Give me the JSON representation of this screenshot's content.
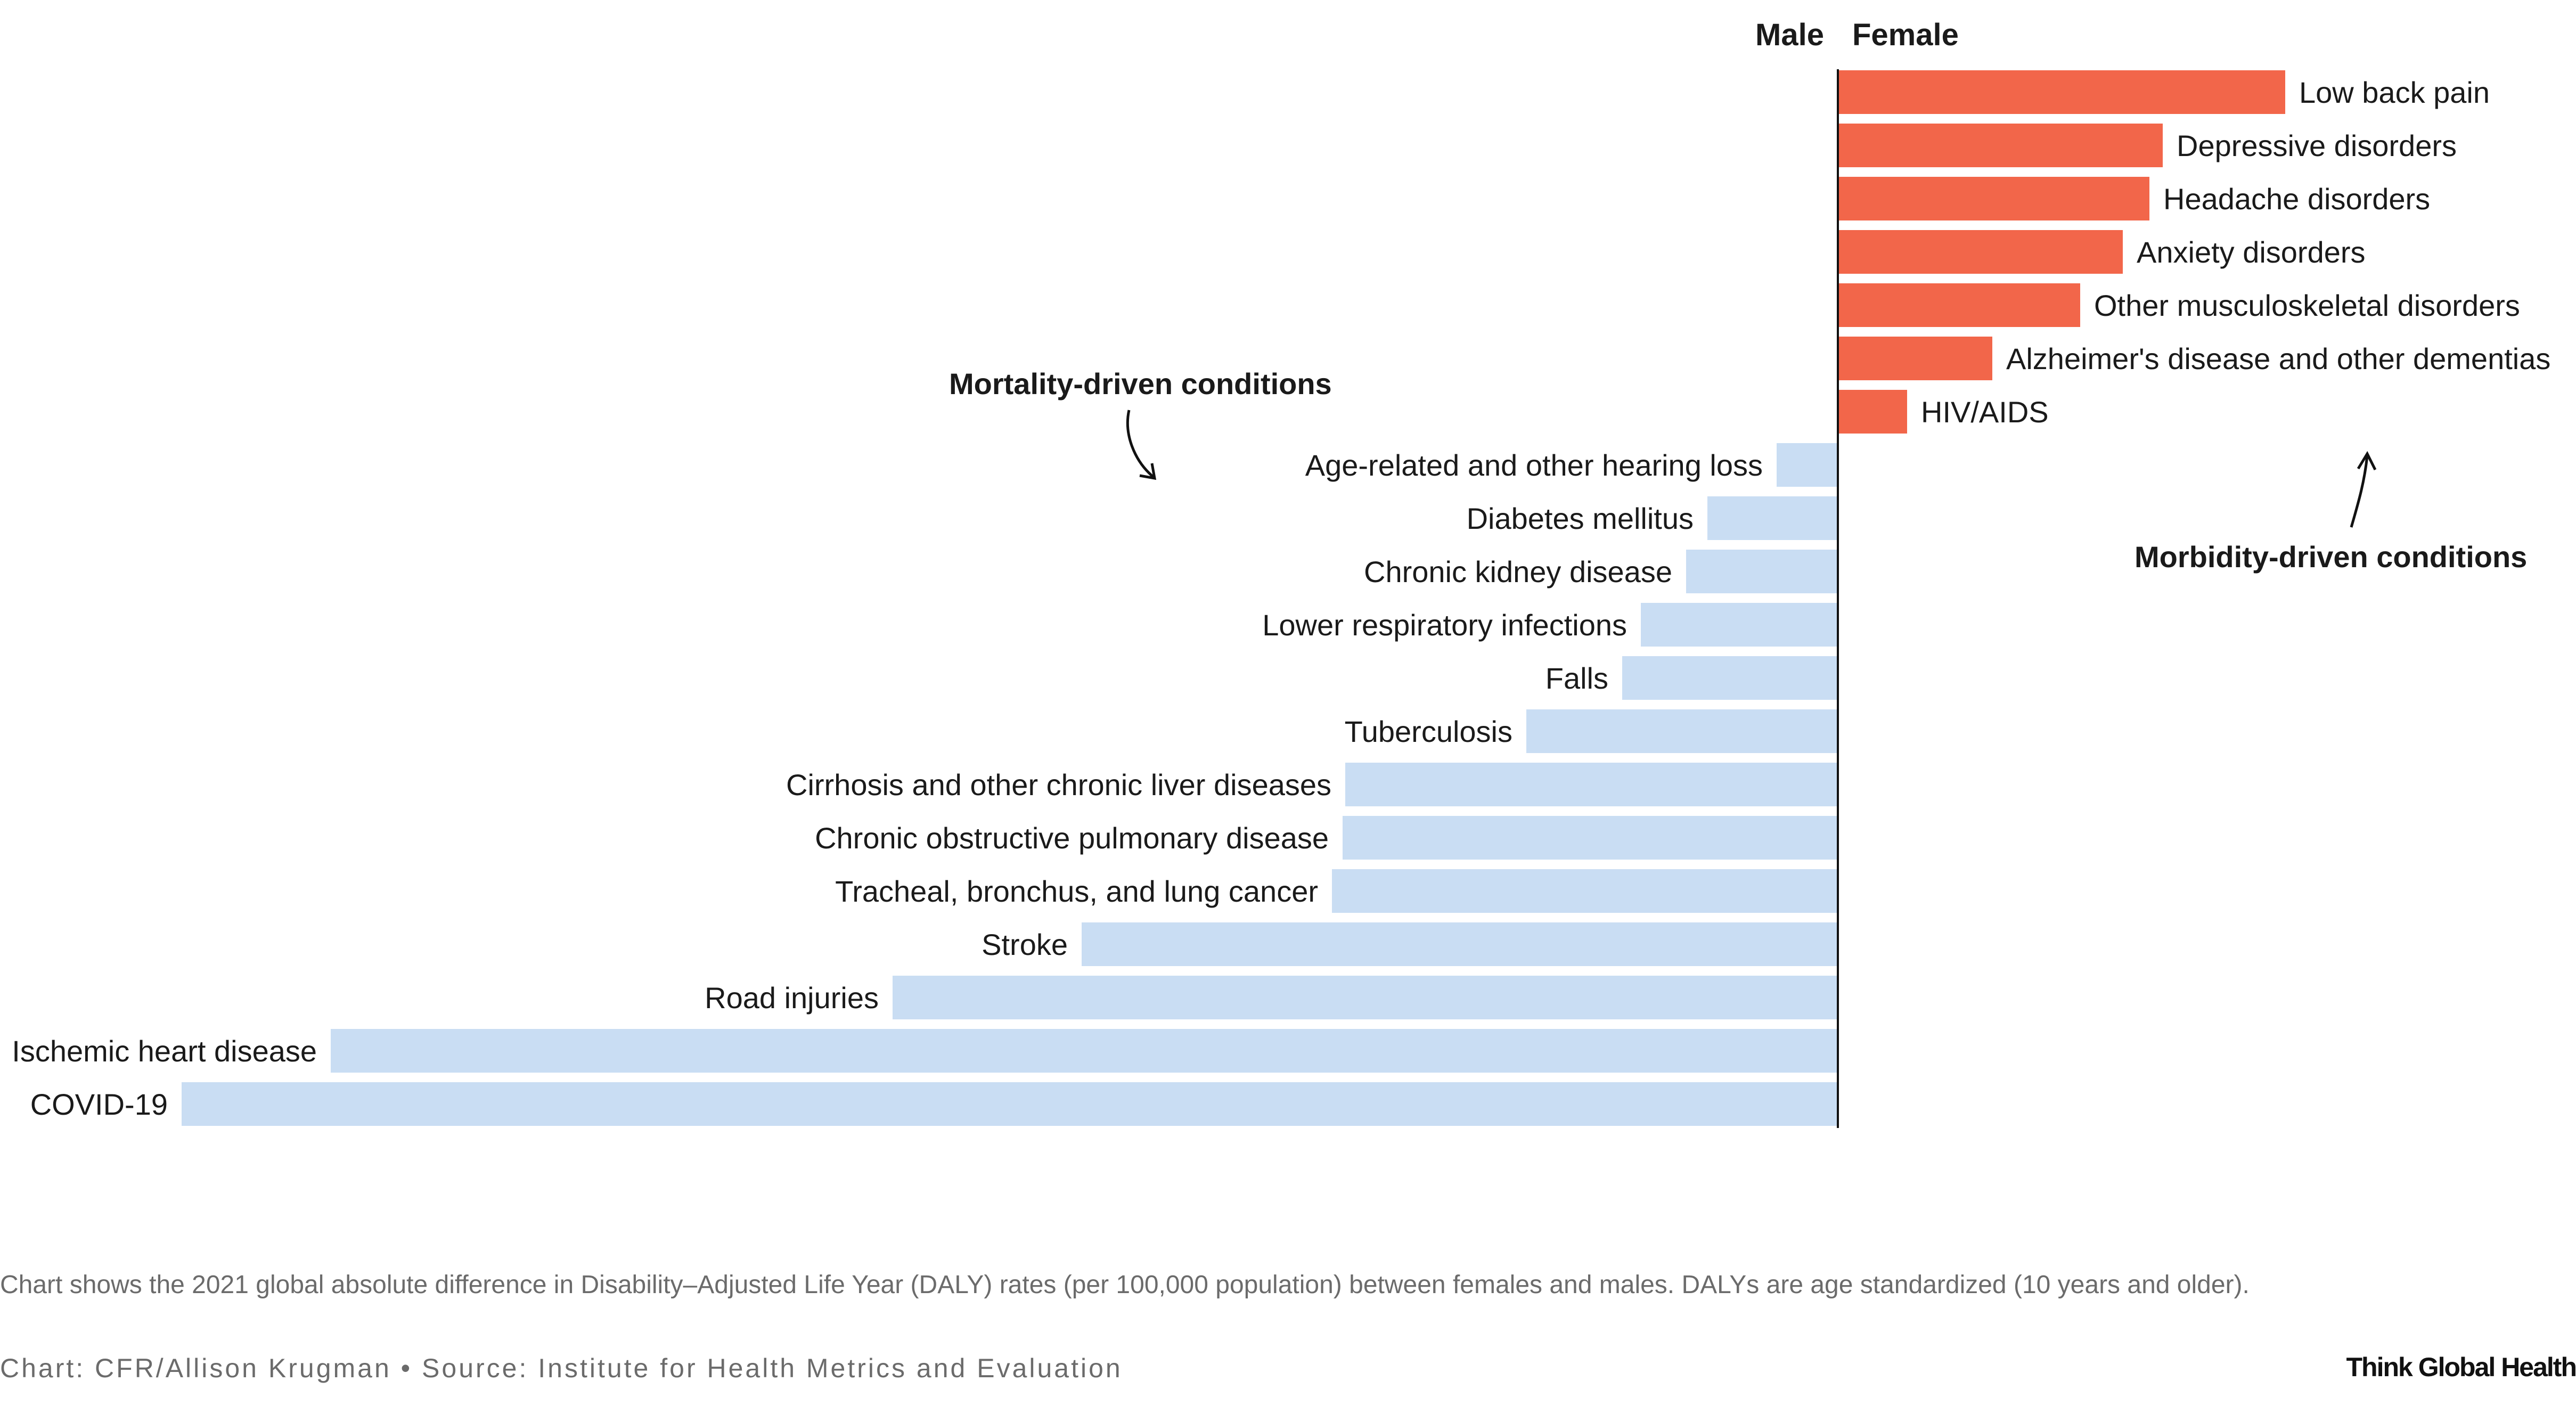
{
  "chart_data": {
    "type": "bar",
    "orientation": "horizontal-diverging",
    "header_left": "Male",
    "header_right": "Female",
    "colors": {
      "female": "#f2664a",
      "male": "#c9ddf3",
      "axis": "#111111"
    },
    "series": [
      {
        "name": "Female",
        "categories": [
          "Low back pain",
          "Depressive disorders",
          "Headache disorders",
          "Anxiety disorders",
          "Other musculoskeletal disorders",
          "Alzheimer's disease and other dementias",
          "HIV/AIDS"
        ],
        "values": [
          840,
          610,
          585,
          535,
          455,
          290,
          130
        ]
      },
      {
        "name": "Male",
        "categories": [
          "Age-related and other hearing loss",
          "Diabetes mellitus",
          "Chronic kidney disease",
          "Lower respiratory infections",
          "Falls",
          "Tuberculosis",
          "Cirrhosis and other chronic liver diseases",
          "Chronic obstructive pulmonary disease",
          "Tracheal, bronchus, and lung cancer",
          "Stroke",
          "Road injuries",
          "Ischemic heart disease",
          "COVID-19"
        ],
        "values": [
          115,
          245,
          285,
          370,
          405,
          585,
          925,
          930,
          950,
          1420,
          1775,
          2830,
          3110
        ]
      }
    ],
    "annotations": {
      "mortality": "Mortality-driven conditions",
      "morbidity": "Morbidity-driven conditions"
    }
  },
  "footer": {
    "note": "Chart shows the 2021 global absolute difference in Disability–Adjusted Life Year (DALY) rates (per 100,000 population) between females and males. DALYs are age standardized (10 years and older).",
    "credit": "Chart: CFR/Allison Krugman • Source: Institute for Health Metrics and Evaluation",
    "brand": "Think Global Health"
  }
}
